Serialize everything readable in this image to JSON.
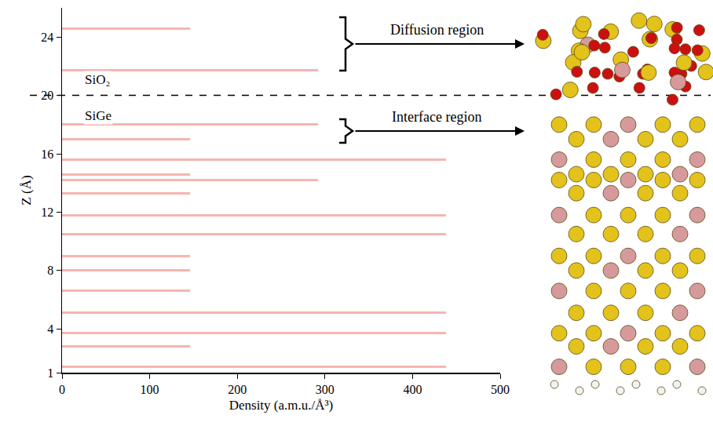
{
  "chart_data": {
    "type": "bar",
    "orientation": "horizontal",
    "x_label": "Density (a.m.u./Å³)",
    "y_label": "Z (Å)",
    "y": [
      1.4,
      2.8,
      3.7,
      5.1,
      6.6,
      8.0,
      9.0,
      10.5,
      11.8,
      13.3,
      14.2,
      14.6,
      15.6,
      17.0,
      18.0,
      21.7,
      24.6
    ],
    "values": [
      438,
      146,
      438,
      438,
      146,
      146,
      146,
      438,
      438,
      146,
      292,
      146,
      438,
      146,
      292,
      292,
      146
    ],
    "color": "#f6b5b0",
    "xlim": [
      0,
      500
    ],
    "xticks": [
      0,
      100,
      200,
      300,
      400,
      500
    ],
    "ylim": [
      1,
      26
    ],
    "yticks": [
      1,
      4,
      8,
      12,
      16,
      20,
      24
    ],
    "grid": false,
    "reference_line": {
      "y": 20,
      "line_style": "dashed"
    },
    "annotations": [
      {
        "text": "SiO₂",
        "y": 21.1
      },
      {
        "text": "SiGe",
        "y": 18.6
      },
      {
        "text": "Diffusion region",
        "y_range": [
          21.7,
          25.35
        ]
      },
      {
        "text": "Interface region",
        "y_range": [
          16.75,
          18.37
        ]
      }
    ]
  }
}
